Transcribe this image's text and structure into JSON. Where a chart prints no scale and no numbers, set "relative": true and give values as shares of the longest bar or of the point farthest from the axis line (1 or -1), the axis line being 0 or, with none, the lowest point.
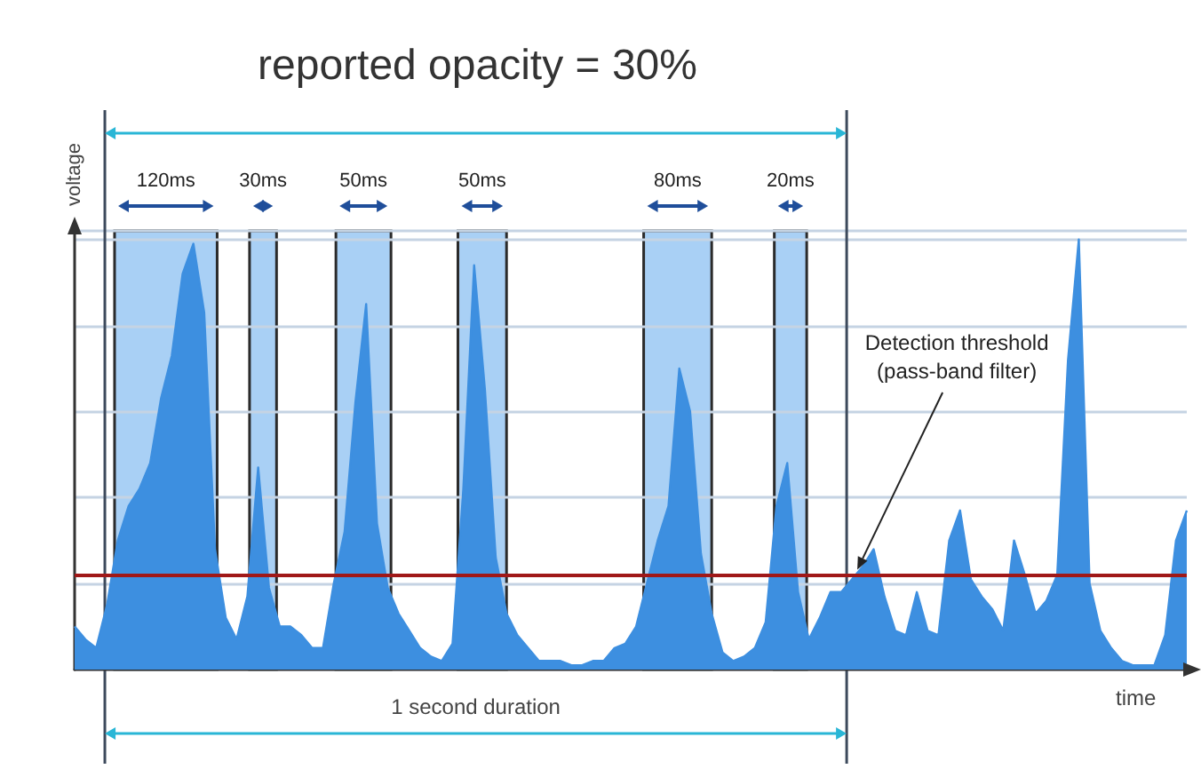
{
  "chart_data": {
    "type": "area",
    "title": "reported opacity = 30%",
    "xlabel": "time",
    "ylabel": "voltage",
    "relative": true,
    "color": "#3d8fe0",
    "grid": "y",
    "categories": [
      null,
      null,
      null,
      null,
      null,
      null,
      null,
      null,
      null,
      null,
      null,
      null,
      null,
      null,
      null,
      null,
      null,
      null,
      null,
      null,
      null,
      null,
      null,
      null,
      null,
      null,
      null,
      null,
      null,
      null,
      null,
      null,
      null,
      null,
      null,
      null,
      null,
      null,
      null,
      null,
      null,
      null,
      null,
      null,
      null,
      null,
      null,
      null,
      null,
      null,
      null,
      null,
      null,
      null,
      null,
      null,
      null,
      null,
      null,
      null,
      null,
      null,
      null,
      null,
      null,
      null,
      null,
      null,
      null,
      null,
      null,
      null,
      null,
      null,
      null,
      null,
      null,
      null,
      null,
      null,
      null,
      null,
      null,
      null,
      null,
      null,
      null,
      null,
      null,
      null,
      null,
      null,
      null,
      null,
      null,
      null,
      null,
      null,
      null,
      null,
      null,
      null,
      null,
      null
    ],
    "values": [
      0.1,
      0.07,
      0.05,
      0.15,
      0.3,
      0.38,
      0.42,
      0.48,
      0.63,
      0.73,
      0.92,
      0.99,
      0.83,
      0.28,
      0.12,
      0.07,
      0.17,
      0.47,
      0.19,
      0.1,
      0.1,
      0.08,
      0.05,
      0.05,
      0.2,
      0.32,
      0.62,
      0.85,
      0.34,
      0.19,
      0.13,
      0.09,
      0.05,
      0.03,
      0.02,
      0.06,
      0.42,
      0.94,
      0.65,
      0.26,
      0.13,
      0.08,
      0.05,
      0.02,
      0.02,
      0.02,
      0.01,
      0.01,
      0.02,
      0.02,
      0.05,
      0.06,
      0.1,
      0.2,
      0.3,
      0.38,
      0.7,
      0.6,
      0.27,
      0.13,
      0.04,
      0.02,
      0.03,
      0.05,
      0.11,
      0.38,
      0.48,
      0.18,
      0.07,
      0.12,
      0.18,
      0.18,
      0.21,
      0.24,
      0.28,
      0.17,
      0.09,
      0.08,
      0.18,
      0.09,
      0.08,
      0.3,
      0.37,
      0.21,
      0.17,
      0.14,
      0.09,
      0.3,
      0.22,
      0.13,
      0.16,
      0.22,
      0.72,
      1,
      0.2,
      0.09,
      0.05,
      0.02,
      0.01,
      0.01,
      0.01,
      0.08,
      0.3,
      0.37
    ],
    "ref_lines": [
      {
        "axis": "y",
        "value": 0.22,
        "color": "#a01818"
      }
    ],
    "annotations": [
      "120ms",
      "30ms",
      "50ms",
      "50ms",
      "80ms",
      "20ms",
      "1 second duration",
      "Detection threshold\n(pass-band filter)"
    ]
  }
}
